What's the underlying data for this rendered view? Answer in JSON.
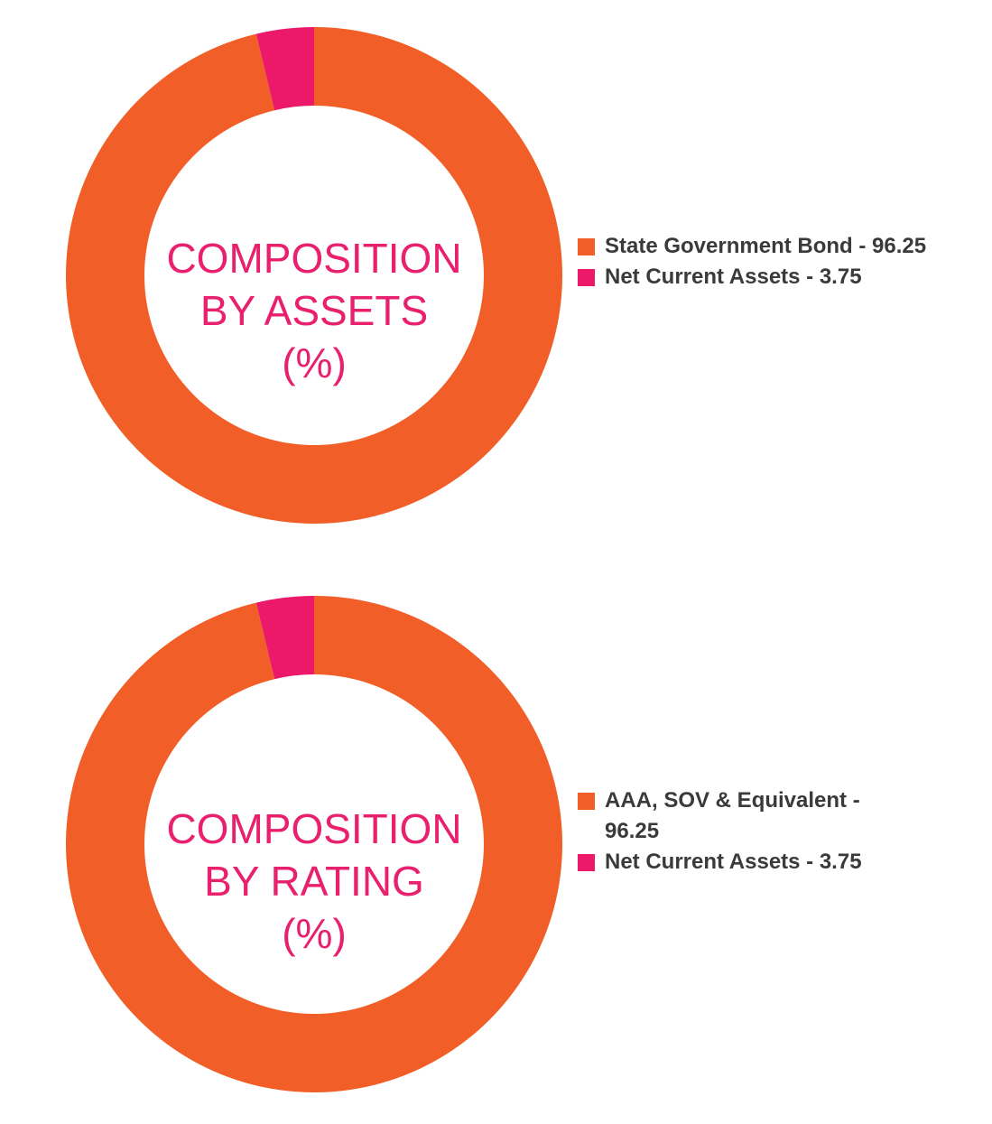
{
  "colors": {
    "primary": "#f15e27",
    "secondary": "#ec1869",
    "title": "#e8206e",
    "legend_text": "#3a3a3a"
  },
  "chart_data": [
    {
      "type": "pie",
      "variant": "donut",
      "title_lines": [
        "COMPOSITION",
        "BY ASSETS",
        "(%)"
      ],
      "categories": [
        "State Government Bond",
        "Net Current Assets"
      ],
      "values": [
        96.25,
        3.75
      ],
      "legend": [
        {
          "label": "State Government Bond - 96.25",
          "color": "#f15e27"
        },
        {
          "label": "Net Current Assets - 3.75",
          "color": "#ec1869"
        }
      ],
      "legend_position": "right"
    },
    {
      "type": "pie",
      "variant": "donut",
      "title_lines": [
        "COMPOSITION",
        "BY RATING",
        "(%)"
      ],
      "categories": [
        "AAA, SOV & Equivalent",
        "Net Current Assets"
      ],
      "values": [
        96.25,
        3.75
      ],
      "legend": [
        {
          "label": "AAA, SOV & Equivalent - 96.25",
          "color": "#f15e27"
        },
        {
          "label": "Net Current Assets - 3.75",
          "color": "#ec1869"
        }
      ],
      "legend_position": "right"
    }
  ]
}
